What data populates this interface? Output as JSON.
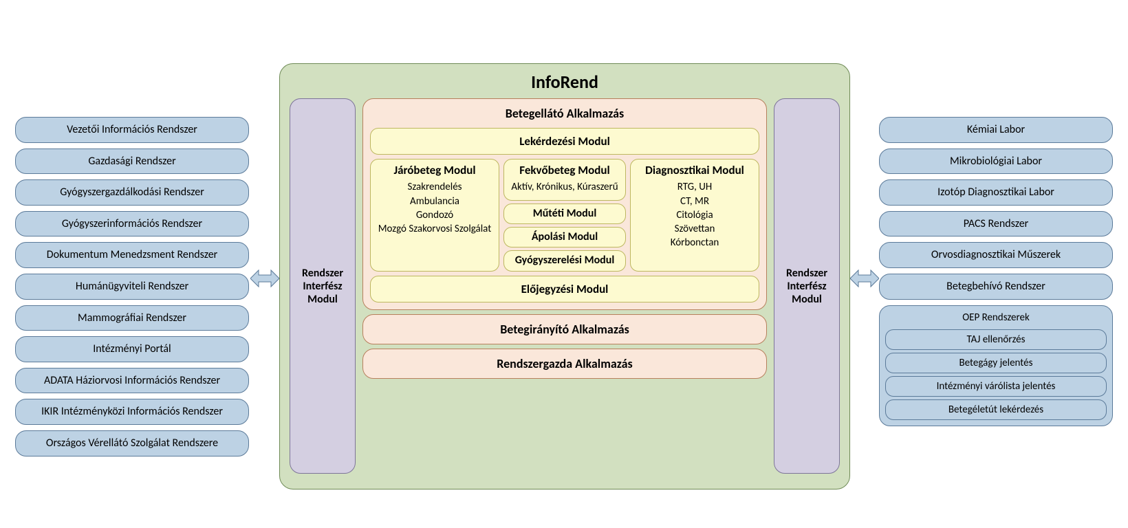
{
  "colors": {
    "pill_bg": "#bdd2e4",
    "pill_border": "#5b7a99",
    "oep_sub_bg": "#bdd2e4",
    "center_bg": "#d2e0c0",
    "center_border": "#6e8a55",
    "iface_bg": "#d4cfe1",
    "iface_border": "#7d7499",
    "app_bg": "#fae7da",
    "app_border": "#b77f5c",
    "module_bg": "#fdfad0",
    "module_border": "#bdb75f",
    "arrow_fill": "#bdd2e4",
    "arrow_stroke": "#5b7a99"
  },
  "left_systems": [
    "Vezetői Információs Rendszer",
    "Gazdasági Rendszer",
    "Gyógyszergazdálkodási Rendszer",
    "Gyógyszerinformációs Rendszer",
    "Dokumentum Menedzsment Rendszer",
    "Humánügyviteli Rendszer",
    "Mammográfiai Rendszer",
    "Intézményi Portál",
    "ADATA Háziorvosi Információs Rendszer",
    "IKIR Intézményközi Információs Rendszer",
    "Országos Vérellátó Szolgálat Rendszere"
  ],
  "right_systems": [
    "Kémiai Labor",
    "Mikrobiológiai Labor",
    "Izotóp Diagnosztikai Labor",
    "PACS Rendszer",
    "Orvosdiagnosztikai Műszerek",
    "Betegbehívó Rendszer"
  ],
  "oep": {
    "title": "OEP Rendszerek",
    "items": [
      "TAJ ellenőrzés",
      "Betegágy jelentés",
      "Intézményi várólista jelentés",
      "Betegéletút lekérdezés"
    ]
  },
  "center": {
    "title": "InfoRend",
    "iface_label": "Rendszer Interfész Modul",
    "main_app_title": "Betegellátó Alkalmazás",
    "top_module": "Lekérdezési Modul",
    "bottom_module": "Előjegyzési Modul",
    "app2": "Betegirányító Alkalmazás",
    "app3": "Rendszergazda Alkalmazás",
    "col1": {
      "title": "Járóbeteg Modul",
      "lines": [
        "Szakrendelés",
        "Ambulancia",
        "Gondozó",
        "Mozgó Szakorvosi Szolgálat"
      ]
    },
    "col2": {
      "title": "Fekvőbeteg Modul",
      "lines": [
        "Aktív, Krónikus, Kúraszerű"
      ],
      "minis": [
        "Műtéti Modul",
        "Ápolási Modul",
        "Gyógyszerelési Modul"
      ]
    },
    "col3": {
      "title": "Diagnosztikai Modul",
      "lines": [
        "RTG, UH",
        "CT, MR",
        "Citológia",
        "Szövettan",
        "Kórbonctan"
      ]
    }
  }
}
